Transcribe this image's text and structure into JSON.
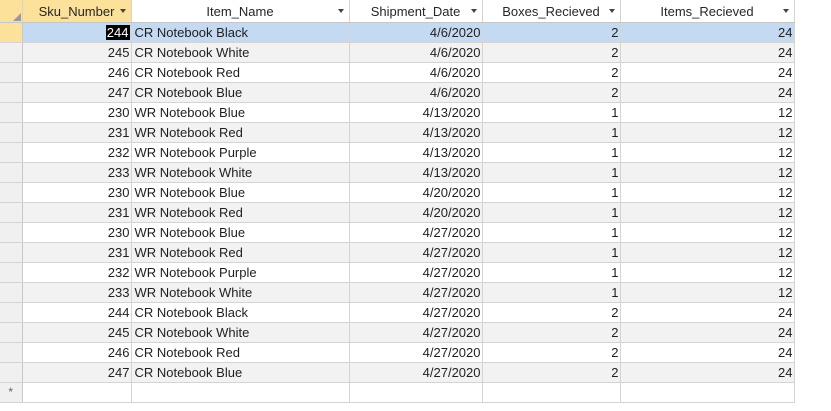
{
  "columns": [
    {
      "label": "Sku_Number",
      "sorted": true
    },
    {
      "label": "Item_Name",
      "sorted": false
    },
    {
      "label": "Shipment_Date",
      "sorted": false
    },
    {
      "label": "Boxes_Recieved",
      "sorted": false
    },
    {
      "label": "Items_Recieved",
      "sorted": false
    }
  ],
  "rows": [
    {
      "sku": "244",
      "item": "CR Notebook Black",
      "date": "4/6/2020",
      "boxes": "2",
      "items": "24"
    },
    {
      "sku": "245",
      "item": "CR Notebook White",
      "date": "4/6/2020",
      "boxes": "2",
      "items": "24"
    },
    {
      "sku": "246",
      "item": "CR Notebook Red",
      "date": "4/6/2020",
      "boxes": "2",
      "items": "24"
    },
    {
      "sku": "247",
      "item": "CR Notebook Blue",
      "date": "4/6/2020",
      "boxes": "2",
      "items": "24"
    },
    {
      "sku": "230",
      "item": "WR Notebook Blue",
      "date": "4/13/2020",
      "boxes": "1",
      "items": "12"
    },
    {
      "sku": "231",
      "item": "WR Notebook Red",
      "date": "4/13/2020",
      "boxes": "1",
      "items": "12"
    },
    {
      "sku": "232",
      "item": "WR Notebook Purple",
      "date": "4/13/2020",
      "boxes": "1",
      "items": "12"
    },
    {
      "sku": "233",
      "item": "WR Notebook White",
      "date": "4/13/2020",
      "boxes": "1",
      "items": "12"
    },
    {
      "sku": "230",
      "item": "WR Notebook Blue",
      "date": "4/20/2020",
      "boxes": "1",
      "items": "12"
    },
    {
      "sku": "231",
      "item": "WR Notebook Red",
      "date": "4/20/2020",
      "boxes": "1",
      "items": "12"
    },
    {
      "sku": "230",
      "item": "WR Notebook Blue",
      "date": "4/27/2020",
      "boxes": "1",
      "items": "12"
    },
    {
      "sku": "231",
      "item": "WR Notebook Red",
      "date": "4/27/2020",
      "boxes": "1",
      "items": "12"
    },
    {
      "sku": "232",
      "item": "WR Notebook Purple",
      "date": "4/27/2020",
      "boxes": "1",
      "items": "12"
    },
    {
      "sku": "233",
      "item": "WR Notebook White",
      "date": "4/27/2020",
      "boxes": "1",
      "items": "12"
    },
    {
      "sku": "244",
      "item": "CR Notebook Black",
      "date": "4/27/2020",
      "boxes": "2",
      "items": "24"
    },
    {
      "sku": "245",
      "item": "CR Notebook White",
      "date": "4/27/2020",
      "boxes": "2",
      "items": "24"
    },
    {
      "sku": "246",
      "item": "CR Notebook Red",
      "date": "4/27/2020",
      "boxes": "2",
      "items": "24"
    },
    {
      "sku": "247",
      "item": "CR Notebook Blue",
      "date": "4/27/2020",
      "boxes": "2",
      "items": "24"
    }
  ],
  "current_row": 0,
  "new_record_marker": "*",
  "colors": {
    "header_sorted": "#fce19a",
    "selected_row": "#c4daf3",
    "alt_row": "#f2f2f2"
  }
}
